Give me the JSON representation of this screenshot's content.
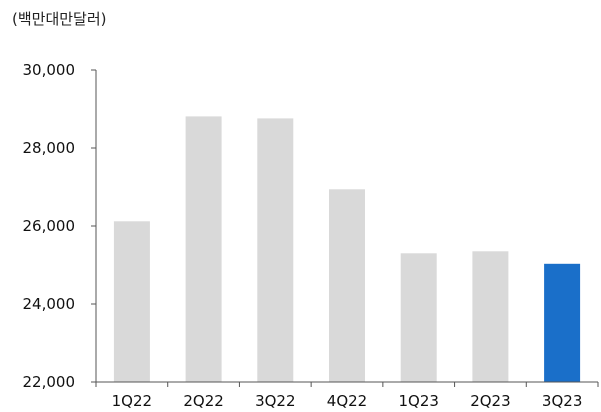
{
  "unit_label": "(백만대만달러)",
  "colors": {
    "bar": "#d9d9d9",
    "highlight": "#1a6fc9",
    "axis": "#555555",
    "text": "#111111"
  },
  "chart_data": {
    "type": "bar",
    "title": "",
    "xlabel": "",
    "ylabel": "(백만대만달러)",
    "categories": [
      "1Q22",
      "2Q22",
      "3Q22",
      "4Q22",
      "1Q23",
      "2Q23",
      "3Q23"
    ],
    "series": [
      {
        "values": [
          26120,
          28810,
          28760,
          26940,
          25300,
          25350,
          25030
        ]
      }
    ],
    "highlight_category": "3Q23",
    "ylim": [
      22000,
      30000
    ],
    "yticks": [
      22000,
      24000,
      26000,
      28000,
      30000
    ],
    "ytick_labels": [
      "22,000",
      "24,000",
      "26,000",
      "28,000",
      "30,000"
    ],
    "grid": false,
    "legend": "none"
  }
}
